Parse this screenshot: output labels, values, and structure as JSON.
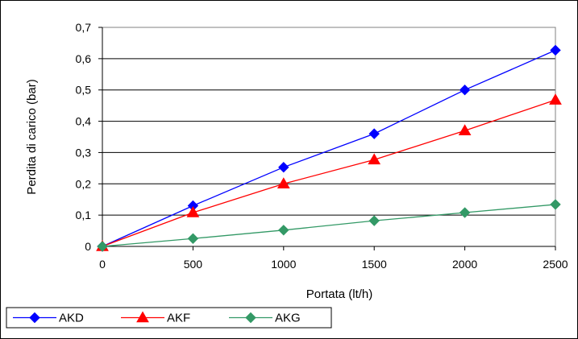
{
  "chart_data": {
    "type": "line",
    "title": "",
    "xlabel": "Portata (lt/h)",
    "ylabel": "Perdita di carico (bar)",
    "x": [
      0,
      500,
      1000,
      1500,
      2000,
      2500
    ],
    "x_tick_labels": [
      "0",
      "500",
      "1000",
      "1500",
      "2000",
      "2500"
    ],
    "xlim": [
      0,
      2500
    ],
    "ylim": [
      0,
      0.7
    ],
    "y_ticks": [
      0,
      0.1,
      0.2,
      0.3,
      0.4,
      0.5,
      0.6,
      0.7
    ],
    "y_tick_labels": [
      "0",
      "0,1",
      "0,2",
      "0,3",
      "0,4",
      "0,5",
      "0,6",
      "0,7"
    ],
    "grid": "horizontal",
    "legend_position": "bottom",
    "series": [
      {
        "name": "AKD",
        "color": "#0000ff",
        "marker": "diamond",
        "values": [
          0,
          0.13,
          0.253,
          0.36,
          0.5,
          0.627
        ]
      },
      {
        "name": "AKF",
        "color": "#ff0000",
        "marker": "triangle",
        "values": [
          0,
          0.108,
          0.2,
          0.277,
          0.37,
          0.468
        ]
      },
      {
        "name": "AKG",
        "color": "#339966",
        "marker": "diamond",
        "values": [
          0,
          0.025,
          0.052,
          0.082,
          0.108,
          0.134
        ]
      }
    ]
  }
}
